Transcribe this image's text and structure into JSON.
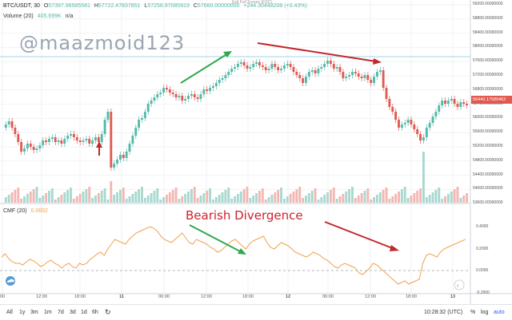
{
  "legend": {
    "symbol": "BTC/USDT, 30",
    "open_label": "O",
    "open": "57397.96585581",
    "high_label": "H",
    "high": "57722.47837851",
    "low_label": "L",
    "low": "57256.97085919",
    "close_label": "C",
    "close": "57660.00000000",
    "change": "+244.30448208 (+0.43%)",
    "volume_label": "Volume (20)",
    "volume_value": "405.699K",
    "volume_na": "n/a",
    "fullscreen_hint": "Exit Full Screen (ESC)"
  },
  "watermark": "@maazmoid123",
  "annotation": "Bearish Divergence",
  "cmf_legend": {
    "label": "CMF (20)",
    "value": "0.0652"
  },
  "current_price": "56440.17589462",
  "price_axis": [
    "59200.00000000",
    "58800.00000000",
    "58400.00000000",
    "58000.00000000",
    "57600.00000000",
    "57200.00000000",
    "56800.00000000",
    "56400.00000000",
    "56000.00000000",
    "55600.00000000",
    "55200.00000000",
    "54800.00000000",
    "54400.00000000",
    "54000.00000000",
    "53600.00000000"
  ],
  "cmf_axis": [
    "0.4000",
    "0.2000",
    "0.0000",
    "-0.2000"
  ],
  "time_axis": [
    "00",
    "12:00",
    "18:00",
    "11",
    "06:00",
    "12:00",
    "18:00",
    "12",
    "06:00",
    "12:00",
    "18:00",
    "13"
  ],
  "toolbar": {
    "ranges": [
      "All",
      "1y",
      "3m",
      "1m",
      "7d",
      "3d",
      "1d",
      "6h"
    ],
    "clock": "10:28:32 (UTC)",
    "percent": "%",
    "log": "log",
    "auto": "auto"
  },
  "colors": {
    "up": "#53b9a9",
    "down": "#e05a50",
    "cmf": "#f0a04b",
    "arrow_up": "#2fa84f",
    "arrow_down": "#c1272d",
    "volume_up": "#a8d8cf",
    "volume_down": "#f2b7b2"
  }
}
